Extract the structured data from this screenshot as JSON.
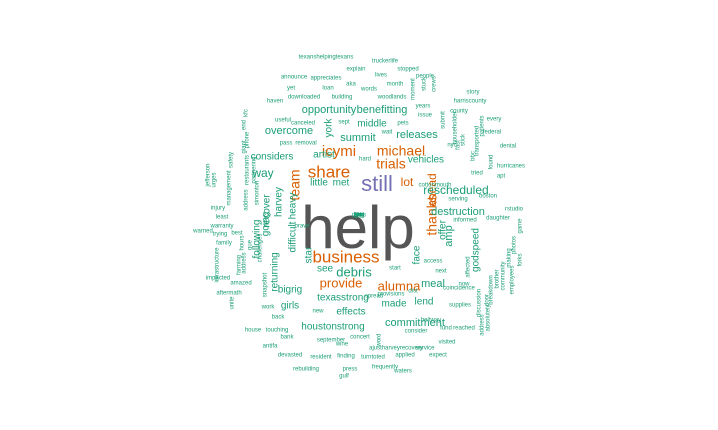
{
  "colors": {
    "gray": "#555555",
    "teal": "#1b9e77",
    "orange": "#d95f02",
    "purple": "#7570b3"
  },
  "words": [
    {
      "t": "help",
      "c": "gray"
    },
    {
      "t": "business",
      "c": "orange"
    },
    {
      "t": "still",
      "c": "purple"
    },
    {
      "t": "share",
      "c": "orange"
    },
    {
      "t": "icymi",
      "c": "orange"
    },
    {
      "t": "michael",
      "c": "orange"
    },
    {
      "t": "team",
      "c": "orange"
    },
    {
      "t": "thanks",
      "c": "orange"
    },
    {
      "t": "ahead",
      "c": "orange"
    },
    {
      "t": "trials",
      "c": "orange"
    },
    {
      "t": "lot",
      "c": "orange"
    },
    {
      "t": "debris",
      "c": "teal"
    },
    {
      "t": "provide",
      "c": "orange"
    },
    {
      "t": "alumna",
      "c": "orange"
    },
    {
      "t": "rescheduled",
      "c": "teal"
    },
    {
      "t": "destruction",
      "c": "teal"
    },
    {
      "t": "commitment",
      "c": "teal"
    },
    {
      "t": "houstonstrong",
      "c": "teal"
    },
    {
      "t": "texasstrong",
      "c": "teal"
    },
    {
      "t": "opportunity",
      "c": "teal"
    },
    {
      "t": "benefitting",
      "c": "teal"
    },
    {
      "t": "middle",
      "c": "teal"
    },
    {
      "t": "summit",
      "c": "teal"
    },
    {
      "t": "releases",
      "c": "teal"
    },
    {
      "t": "vehicles",
      "c": "teal"
    },
    {
      "t": "overcome",
      "c": "teal"
    },
    {
      "t": "considers",
      "c": "teal"
    },
    {
      "t": "artist",
      "c": "teal"
    },
    {
      "t": "york",
      "c": "teal"
    },
    {
      "t": "recover",
      "c": "teal"
    },
    {
      "t": "way",
      "c": "teal"
    },
    {
      "t": "going",
      "c": "teal"
    },
    {
      "t": "harvey",
      "c": "teal"
    },
    {
      "t": "following",
      "c": "teal"
    },
    {
      "t": "returning",
      "c": "teal"
    },
    {
      "t": "difficult",
      "c": "teal"
    },
    {
      "t": "heavy",
      "c": "teal"
    },
    {
      "t": "star",
      "c": "teal"
    },
    {
      "t": "see",
      "c": "teal"
    },
    {
      "t": "little",
      "c": "teal"
    },
    {
      "t": "met",
      "c": "teal"
    },
    {
      "t": "face",
      "c": "teal"
    },
    {
      "t": "meal",
      "c": "teal"
    },
    {
      "t": "lend",
      "c": "teal"
    },
    {
      "t": "made",
      "c": "teal"
    },
    {
      "t": "effects",
      "c": "teal"
    },
    {
      "t": "girls",
      "c": "teal"
    },
    {
      "t": "bigrig",
      "c": "teal"
    },
    {
      "t": "godspeed",
      "c": "teal"
    },
    {
      "t": "amp",
      "c": "teal"
    },
    {
      "t": "offer",
      "c": "teal"
    },
    {
      "t": "texanshelpingtexans",
      "c": "teal"
    },
    {
      "t": "truckerlife",
      "c": "teal"
    },
    {
      "t": "explain",
      "c": "teal"
    },
    {
      "t": "stopped",
      "c": "teal"
    },
    {
      "t": "announce",
      "c": "teal"
    },
    {
      "t": "appreciates",
      "c": "teal"
    },
    {
      "t": "lives",
      "c": "teal"
    },
    {
      "t": "people",
      "c": "teal"
    },
    {
      "t": "aka",
      "c": "teal"
    },
    {
      "t": "month",
      "c": "teal"
    },
    {
      "t": "stuck",
      "c": "teal"
    },
    {
      "t": "crews",
      "c": "teal"
    },
    {
      "t": "yet",
      "c": "teal"
    },
    {
      "t": "loan",
      "c": "teal"
    },
    {
      "t": "words",
      "c": "teal"
    },
    {
      "t": "moment",
      "c": "teal"
    },
    {
      "t": "story",
      "c": "teal"
    },
    {
      "t": "downloaded",
      "c": "teal"
    },
    {
      "t": "building",
      "c": "teal"
    },
    {
      "t": "woodlands",
      "c": "teal"
    },
    {
      "t": "harriscounty",
      "c": "teal"
    },
    {
      "t": "haven",
      "c": "teal"
    },
    {
      "t": "years",
      "c": "teal"
    },
    {
      "t": "county",
      "c": "teal"
    },
    {
      "t": "issue",
      "c": "teal"
    },
    {
      "t": "every",
      "c": "teal"
    },
    {
      "t": "canceled",
      "c": "teal"
    },
    {
      "t": "sept",
      "c": "teal"
    },
    {
      "t": "pets",
      "c": "teal"
    },
    {
      "t": "federal",
      "c": "teal"
    },
    {
      "t": "useful",
      "c": "teal"
    },
    {
      "t": "wait",
      "c": "teal"
    },
    {
      "t": "pass",
      "c": "teal"
    },
    {
      "t": "removal",
      "c": "teal"
    },
    {
      "t": "hard",
      "c": "teal"
    },
    {
      "t": "nyc",
      "c": "teal"
    },
    {
      "t": "dental",
      "c": "teal"
    },
    {
      "t": "hurricanes",
      "c": "teal"
    },
    {
      "t": "apt",
      "c": "teal"
    },
    {
      "t": "rstudio",
      "c": "teal"
    },
    {
      "t": "serving",
      "c": "teal"
    },
    {
      "t": "boston",
      "c": "teal"
    },
    {
      "t": "daughter",
      "c": "teal"
    },
    {
      "t": "informed",
      "c": "teal"
    },
    {
      "t": "injury",
      "c": "teal"
    },
    {
      "t": "least",
      "c": "teal"
    },
    {
      "t": "warranty",
      "c": "teal"
    },
    {
      "t": "warned",
      "c": "teal"
    },
    {
      "t": "trying",
      "c": "teal"
    },
    {
      "t": "best",
      "c": "teal"
    },
    {
      "t": "family",
      "c": "teal"
    },
    {
      "t": "next",
      "c": "teal"
    },
    {
      "t": "start",
      "c": "teal"
    },
    {
      "t": "access",
      "c": "teal"
    },
    {
      "t": "now",
      "c": "teal"
    },
    {
      "t": "amazed",
      "c": "teal"
    },
    {
      "t": "aftermath",
      "c": "teal"
    },
    {
      "t": "provisions",
      "c": "teal"
    },
    {
      "t": "dist",
      "c": "teal"
    },
    {
      "t": "work",
      "c": "teal"
    },
    {
      "t": "new",
      "c": "teal"
    },
    {
      "t": "back",
      "c": "teal"
    },
    {
      "t": "house",
      "c": "teal"
    },
    {
      "t": "touching",
      "c": "teal"
    },
    {
      "t": "bank",
      "c": "teal"
    },
    {
      "t": "september",
      "c": "teal"
    },
    {
      "t": "concert",
      "c": "teal"
    },
    {
      "t": "consider",
      "c": "teal"
    },
    {
      "t": "fund",
      "c": "teal"
    },
    {
      "t": "reached",
      "c": "teal"
    },
    {
      "t": "antifa",
      "c": "teal"
    },
    {
      "t": "wine",
      "c": "teal"
    },
    {
      "t": "ajustharveyrecovery",
      "c": "teal"
    },
    {
      "t": "service",
      "c": "teal"
    },
    {
      "t": "visited",
      "c": "teal"
    },
    {
      "t": "devasted",
      "c": "teal"
    },
    {
      "t": "resident",
      "c": "teal"
    },
    {
      "t": "finding",
      "c": "teal"
    },
    {
      "t": "turntoted",
      "c": "teal"
    },
    {
      "t": "applied",
      "c": "teal"
    },
    {
      "t": "expect",
      "c": "teal"
    },
    {
      "t": "rebuilding",
      "c": "teal"
    },
    {
      "t": "press",
      "c": "teal"
    },
    {
      "t": "frequently",
      "c": "teal"
    },
    {
      "t": "waters",
      "c": "teal"
    },
    {
      "t": "gulf",
      "c": "teal"
    },
    {
      "t": "word",
      "c": "teal"
    },
    {
      "t": "beltway",
      "c": "teal"
    },
    {
      "t": "jefferson",
      "c": "teal"
    },
    {
      "t": "urges",
      "c": "teal"
    },
    {
      "t": "management",
      "c": "teal"
    },
    {
      "t": "infrastructure",
      "c": "teal"
    },
    {
      "t": "unite",
      "c": "teal"
    },
    {
      "t": "farming",
      "c": "teal"
    },
    {
      "t": "impacted",
      "c": "teal"
    },
    {
      "t": "address",
      "c": "teal"
    },
    {
      "t": "hours",
      "c": "teal"
    },
    {
      "t": "que",
      "c": "teal"
    },
    {
      "t": "challenges",
      "c": "teal"
    },
    {
      "t": "snapshot",
      "c": "teal"
    },
    {
      "t": "phone",
      "c": "teal"
    },
    {
      "t": "end",
      "c": "teal"
    },
    {
      "t": "kfc",
      "c": "teal"
    },
    {
      "t": "safety",
      "c": "teal"
    },
    {
      "t": "restaurants",
      "c": "teal"
    },
    {
      "t": "giant",
      "c": "teal"
    },
    {
      "t": "address",
      "c": "teal"
    },
    {
      "t": "partnering",
      "c": "teal"
    },
    {
      "t": "simonton",
      "c": "teal"
    },
    {
      "t": "submit",
      "c": "teal"
    },
    {
      "t": "householder",
      "c": "teal"
    },
    {
      "t": "stick",
      "c": "teal"
    },
    {
      "t": "fast",
      "c": "teal"
    },
    {
      "t": "bbc",
      "c": "teal"
    },
    {
      "t": "transported",
      "c": "teal"
    },
    {
      "t": "patients",
      "c": "teal"
    },
    {
      "t": "found",
      "c": "teal"
    },
    {
      "t": "affected",
      "c": "teal"
    },
    {
      "t": "discussion",
      "c": "teal"
    },
    {
      "t": "address",
      "c": "teal"
    },
    {
      "t": "door",
      "c": "teal"
    },
    {
      "t": "brother",
      "c": "teal"
    },
    {
      "t": "community",
      "c": "teal"
    },
    {
      "t": "employees",
      "c": "teal"
    },
    {
      "t": "forks",
      "c": "teal"
    },
    {
      "t": "photos",
      "c": "teal"
    },
    {
      "t": "game",
      "c": "teal"
    },
    {
      "t": "making",
      "c": "teal"
    },
    {
      "t": "breakdown",
      "c": "teal"
    },
    {
      "t": "cottonmouth",
      "c": "teal"
    },
    {
      "t": "supplies",
      "c": "teal"
    },
    {
      "t": "absolutely",
      "c": "teal"
    },
    {
      "t": "coincidence",
      "c": "teal"
    },
    {
      "t": "spread",
      "c": "teal"
    },
    {
      "t": "tried",
      "c": "teal"
    },
    {
      "t": "brave",
      "c": "teal"
    },
    {
      "t": "king",
      "c": "teal"
    },
    {
      "t": "god",
      "c": "teal"
    },
    {
      "t": "plans",
      "c": "teal"
    },
    {
      "t": "ta",
      "c": "teal"
    },
    {
      "t": "fly",
      "c": "teal"
    },
    {
      "t": "gift",
      "c": "teal"
    },
    {
      "t": "fury",
      "c": "teal"
    }
  ]
}
